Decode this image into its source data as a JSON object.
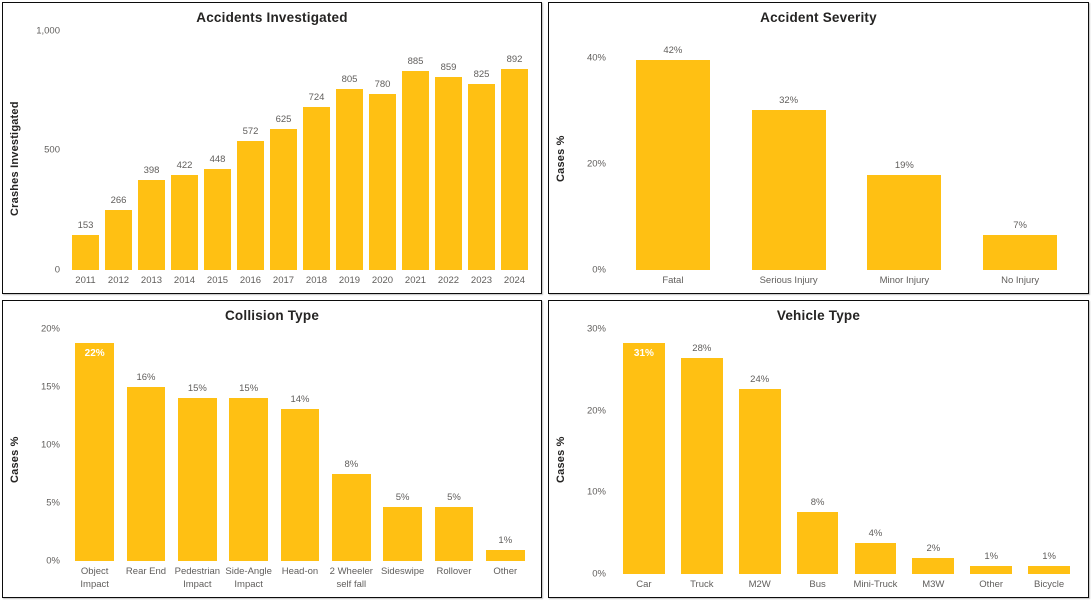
{
  "theme": {
    "bar_color": "#FFC013",
    "title_color": "#252423",
    "axis_label_color": "#605E5C",
    "inside_label_color": "#FFFFFF",
    "panel_border_color": "#0C0C0C",
    "background_color": "#FFFFFF"
  },
  "chart_data": [
    {
      "type": "bar",
      "title": "Accidents Investigated",
      "xlabel": "",
      "ylabel": "Crashes Investigated",
      "categories": [
        "2011",
        "2012",
        "2013",
        "2014",
        "2015",
        "2016",
        "2017",
        "2018",
        "2019",
        "2020",
        "2021",
        "2022",
        "2023",
        "2024"
      ],
      "values": [
        153,
        266,
        398,
        422,
        448,
        572,
        625,
        724,
        805,
        780,
        885,
        859,
        825,
        892
      ],
      "labels": [
        "153",
        "266",
        "398",
        "422",
        "448",
        "572",
        "625",
        "724",
        "805",
        "780",
        "885",
        "859",
        "825",
        "892"
      ],
      "ylim": [
        0,
        1000
      ],
      "grid": false,
      "legend": "none",
      "yticks": [
        {
          "value": 0,
          "label": "0"
        },
        {
          "value": 500,
          "label": "500"
        },
        {
          "value": 1000,
          "label": "1,000"
        }
      ],
      "inside_label_indices": []
    },
    {
      "type": "bar",
      "title": "Accident Severity",
      "xlabel": "",
      "ylabel": "Cases %",
      "categories": [
        "Fatal",
        "Serious Injury",
        "Minor Injury",
        "No Injury"
      ],
      "values": [
        42,
        32,
        19,
        7
      ],
      "labels": [
        "42%",
        "32%",
        "19%",
        "7%"
      ],
      "ylim": [
        0,
        45
      ],
      "grid": false,
      "legend": "none",
      "yticks": [
        {
          "value": 0,
          "label": "0%"
        },
        {
          "value": 20,
          "label": "20%"
        },
        {
          "value": 40,
          "label": "40%"
        }
      ],
      "inside_label_indices": []
    },
    {
      "type": "bar",
      "title": "Collision Type",
      "xlabel": "",
      "ylabel": "Cases %",
      "categories": [
        "Object Impact",
        "Rear End",
        "Pedestrian Impact",
        "Side-Angle Impact",
        "Head-on",
        "2 Wheeler self fall",
        "Sideswipe",
        "Rollover",
        "Other"
      ],
      "values": [
        22,
        16,
        15,
        15,
        14,
        8,
        5,
        5,
        1
      ],
      "labels": [
        "22%",
        "16%",
        "15%",
        "15%",
        "14%",
        "8%",
        "5%",
        "5%",
        "1%"
      ],
      "ylim": [
        0,
        20
      ],
      "grid": false,
      "legend": "none",
      "yticks": [
        {
          "value": 0,
          "label": "0%"
        },
        {
          "value": 5,
          "label": "5%"
        },
        {
          "value": 10,
          "label": "10%"
        },
        {
          "value": 15,
          "label": "15%"
        },
        {
          "value": 20,
          "label": "20%"
        }
      ],
      "inside_label_indices": [
        0
      ]
    },
    {
      "type": "bar",
      "title": "Vehicle Type",
      "xlabel": "",
      "ylabel": "Cases %",
      "categories": [
        "Car",
        "Truck",
        "M2W",
        "Bus",
        "Mini-Truck",
        "M3W",
        "Other",
        "Bicycle"
      ],
      "values": [
        31,
        28,
        24,
        8,
        4,
        2,
        1,
        1
      ],
      "labels": [
        "31%",
        "28%",
        "24%",
        "8%",
        "4%",
        "2%",
        "1%",
        "1%"
      ],
      "ylim": [
        0,
        30
      ],
      "grid": false,
      "legend": "none",
      "yticks": [
        {
          "value": 0,
          "label": "0%"
        },
        {
          "value": 10,
          "label": "10%"
        },
        {
          "value": 20,
          "label": "20%"
        },
        {
          "value": 30,
          "label": "30%"
        }
      ],
      "inside_label_indices": [
        0
      ]
    }
  ]
}
